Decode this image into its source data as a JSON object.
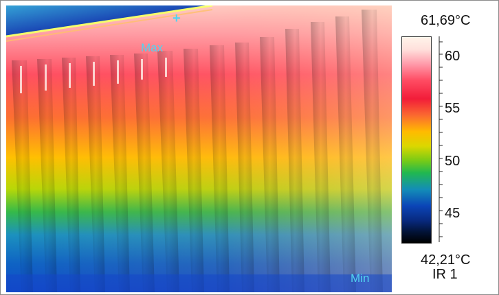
{
  "thermal_view": {
    "max_marker_label": "Max",
    "min_marker_label": "Min",
    "max_point_symbol": "+"
  },
  "scale": {
    "max_value": "61,69°C",
    "min_value": "42,21°C",
    "source_label": "IR 1",
    "ticks": [
      "60",
      "55",
      "50",
      "45"
    ],
    "palette": [
      "#fff4ea",
      "#ff4c63",
      "#ffbb00",
      "#79cb16",
      "#138db7",
      "#082a80",
      "#000000"
    ]
  }
}
